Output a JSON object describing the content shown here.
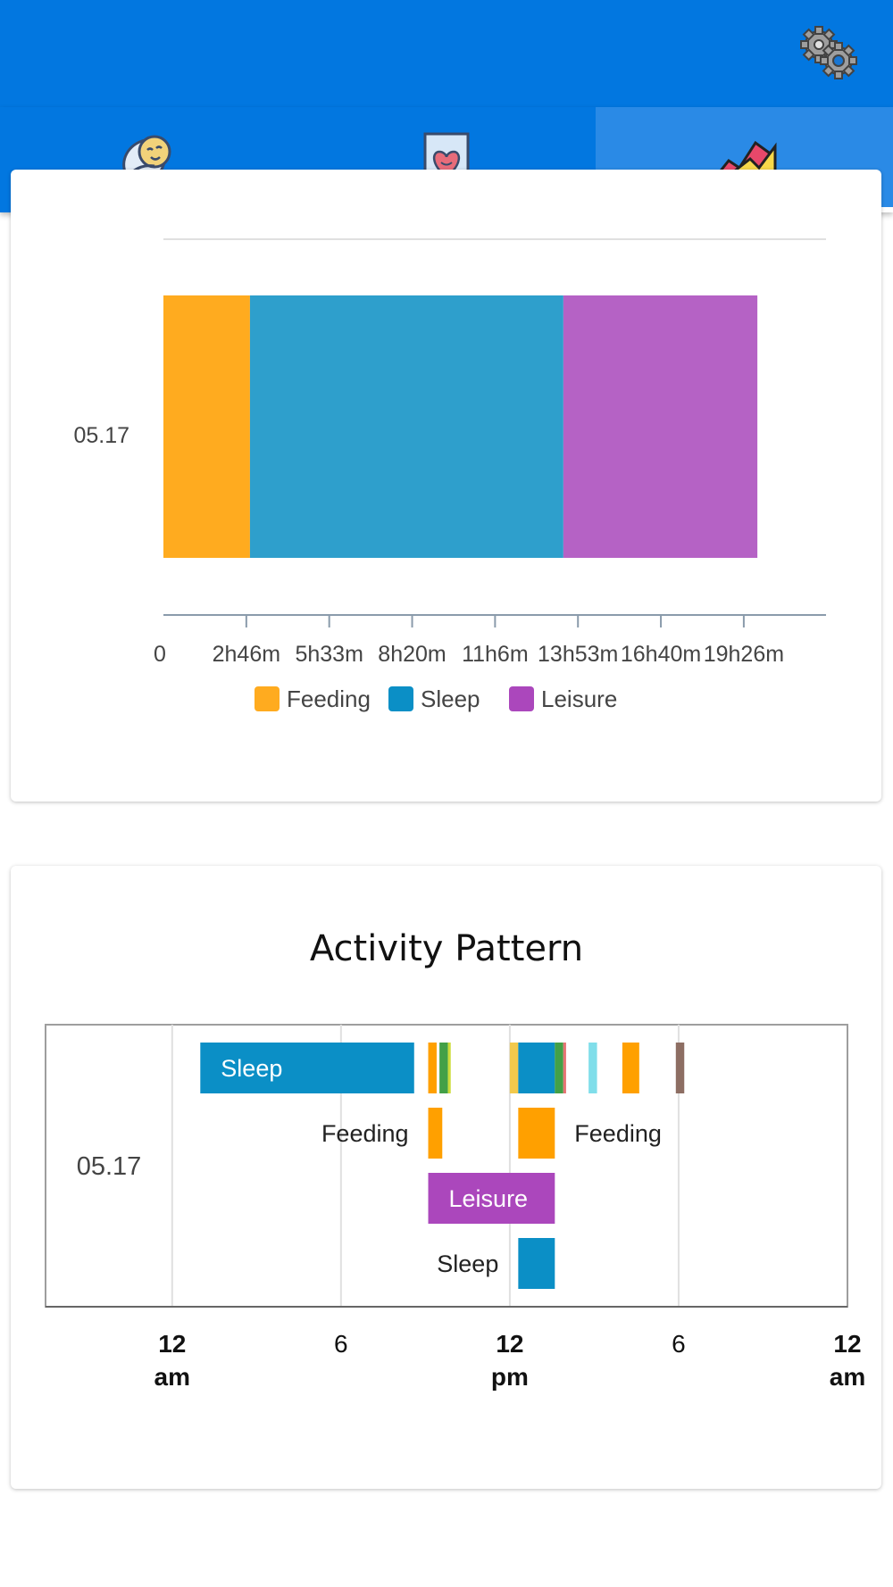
{
  "tabs": [
    {
      "name": "baby-tab",
      "icon": "swaddled-baby-icon",
      "active": false
    },
    {
      "name": "journal-tab",
      "icon": "heart-card-icon",
      "active": false
    },
    {
      "name": "stats-tab",
      "icon": "area-chart-icon",
      "active": true
    }
  ],
  "header": {
    "settings_icon": "gears-icon"
  },
  "chart_data": [
    {
      "type": "bar",
      "orientation": "horizontal",
      "stacked": true,
      "categories": [
        "05.17"
      ],
      "series": [
        {
          "name": "Feeding",
          "color": "#ffab1f",
          "values": [
            2.9
          ]
        },
        {
          "name": "Sleep",
          "color": "#2e9fcc",
          "values": [
            10.5
          ]
        },
        {
          "name": "Leisure",
          "color": "#b562c5",
          "values": [
            6.5
          ]
        }
      ],
      "x_unit": "hours",
      "xlim": [
        0,
        22.2
      ],
      "x_ticks": [
        0,
        2.7778,
        5.5556,
        8.3333,
        11.1111,
        13.8889,
        16.6667,
        19.4444
      ],
      "x_tick_labels": [
        "0",
        "2h46m",
        "5h33m",
        "8h20m",
        "11h6m",
        "13h53m",
        "16h40m",
        "19h26m"
      ],
      "legend": [
        "Feeding",
        "Sleep",
        "Leisure"
      ],
      "legend_colors": [
        "#ffab1f",
        "#0b8fc6",
        "#ab47bc"
      ],
      "legend_position": "bottom"
    },
    {
      "type": "timeline",
      "title": "Activity Pattern",
      "category": "05.17",
      "x_unit": "hour of day",
      "xlim": [
        -4.5,
        24
      ],
      "x_ticks": [
        0,
        6,
        12,
        18,
        24
      ],
      "x_tick_labels": [
        [
          "12",
          "am"
        ],
        [
          "6",
          ""
        ],
        [
          "12",
          "pm"
        ],
        [
          "6",
          ""
        ],
        [
          "12",
          "am"
        ]
      ],
      "rows": [
        {
          "bars": [
            {
              "start": 1.0,
              "end": 8.6,
              "color": "#0b8fc6",
              "label": "Sleep",
              "label_pos": "inside"
            },
            {
              "start": 9.1,
              "end": 9.4,
              "color": "#ffa000"
            },
            {
              "start": 9.5,
              "end": 9.8,
              "color": "#43a047"
            },
            {
              "start": 9.8,
              "end": 9.9,
              "color": "#cddc39"
            },
            {
              "start": 12.0,
              "end": 12.3,
              "color": "#f2c94c"
            },
            {
              "start": 12.3,
              "end": 13.6,
              "color": "#0b8fc6"
            },
            {
              "start": 13.6,
              "end": 13.9,
              "color": "#43a047"
            },
            {
              "start": 13.9,
              "end": 14.0,
              "color": "#e57373"
            },
            {
              "start": 14.8,
              "end": 15.1,
              "color": "#80deea"
            },
            {
              "start": 16.0,
              "end": 16.6,
              "color": "#ffa000"
            },
            {
              "start": 17.9,
              "end": 18.2,
              "color": "#8d6e63"
            }
          ]
        },
        {
          "bars": [
            {
              "start": 9.1,
              "end": 9.6,
              "color": "#ffa000",
              "label": "Feeding",
              "label_pos": "left"
            },
            {
              "start": 12.3,
              "end": 13.6,
              "color": "#ffa000",
              "label": "Feeding",
              "label_pos": "right"
            }
          ]
        },
        {
          "bars": [
            {
              "start": 9.1,
              "end": 13.6,
              "color": "#ab47bc",
              "label": "Leisure",
              "label_pos": "inside"
            }
          ]
        },
        {
          "bars": [
            {
              "start": 12.3,
              "end": 13.6,
              "color": "#0b8fc6",
              "label": "Sleep",
              "label_pos": "left"
            }
          ]
        }
      ]
    }
  ]
}
